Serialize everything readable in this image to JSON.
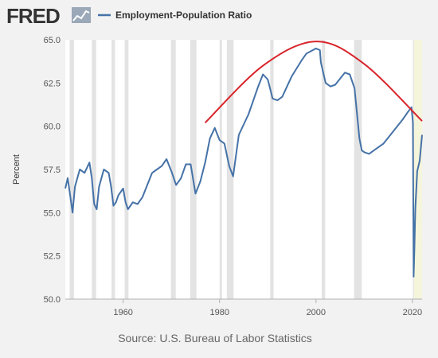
{
  "header": {
    "logo_text": "FRED"
  },
  "chart_data": {
    "type": "line",
    "title": "",
    "xlabel": "",
    "ylabel": "Percent",
    "source": "Source: U.S. Bureau of Labor Statistics",
    "xlim": [
      1948,
      2022
    ],
    "ylim": [
      50,
      65
    ],
    "x_ticks": [
      "1960",
      "1980",
      "2000",
      "2020"
    ],
    "y_ticks": [
      "50.0",
      "52.5",
      "55.0",
      "57.5",
      "60.0",
      "62.5",
      "65.0"
    ],
    "legend_position": "top-left",
    "grid": false,
    "series": [
      {
        "name": "Employment-Population Ratio",
        "color": "#4572a7",
        "x": [
          1948,
          1948.5,
          1949,
          1949.5,
          1950,
          1951,
          1952,
          1953,
          1953.5,
          1954,
          1954.5,
          1955,
          1956,
          1957,
          1957.5,
          1958,
          1958.5,
          1959,
          1960,
          1960.5,
          1961,
          1962,
          1963,
          1964,
          1965,
          1966,
          1967,
          1968,
          1969,
          1970,
          1971,
          1972,
          1973,
          1974,
          1975,
          1976,
          1977,
          1978,
          1979,
          1980,
          1981,
          1982,
          1982.8,
          1984,
          1986,
          1988,
          1989,
          1990,
          1991,
          1992,
          1993,
          1995,
          1997,
          1998,
          2000,
          2000.8,
          2001,
          2002,
          2003,
          2004,
          2006,
          2007,
          2008,
          2009,
          2009.5,
          2010,
          2011,
          2012,
          2014,
          2016,
          2018,
          2019,
          2019.8,
          2020.1,
          2020.25,
          2020.4,
          2020.6,
          2021,
          2021.5,
          2022
        ],
        "values": [
          56.4,
          57.0,
          56.0,
          55.0,
          56.5,
          57.5,
          57.3,
          57.9,
          57.0,
          55.5,
          55.2,
          56.5,
          57.5,
          57.3,
          56.5,
          55.4,
          55.6,
          56.0,
          56.4,
          55.6,
          55.2,
          55.6,
          55.5,
          55.9,
          56.6,
          57.3,
          57.5,
          57.7,
          58.1,
          57.4,
          56.6,
          57.0,
          57.8,
          57.8,
          56.1,
          56.8,
          57.9,
          59.3,
          59.9,
          59.2,
          59.0,
          57.7,
          57.1,
          59.5,
          60.7,
          62.3,
          63.0,
          62.7,
          61.6,
          61.5,
          61.7,
          62.9,
          63.8,
          64.2,
          64.5,
          64.4,
          63.7,
          62.5,
          62.3,
          62.4,
          63.1,
          63.0,
          62.2,
          59.3,
          58.6,
          58.5,
          58.4,
          58.6,
          59.0,
          59.7,
          60.4,
          60.8,
          61.1,
          60.2,
          51.3,
          52.8,
          55.2,
          57.4,
          58.0,
          59.5
        ]
      }
    ],
    "shaded_periods": [
      [
        1948.9,
        1949.8
      ],
      [
        1953.5,
        1954.4
      ],
      [
        1957.6,
        1958.3
      ],
      [
        1960.3,
        1961.1
      ],
      [
        1969.9,
        1970.9
      ],
      [
        1973.9,
        1975.2
      ],
      [
        1980.0,
        1980.5
      ],
      [
        1981.5,
        1982.9
      ],
      [
        1990.5,
        1991.2
      ],
      [
        2001.2,
        2001.9
      ],
      [
        2007.9,
        2009.5
      ],
      [
        2020.1,
        2020.3
      ]
    ],
    "highlight_period": [
      2020.3,
      2022
    ],
    "annotations": [
      {
        "type": "trend-arc",
        "color": "#d9232a",
        "x": [
          1977,
          1989,
          2000,
          2010,
          2022
        ],
        "y": [
          60.2,
          63.5,
          64.9,
          63.6,
          60.3
        ]
      }
    ]
  }
}
